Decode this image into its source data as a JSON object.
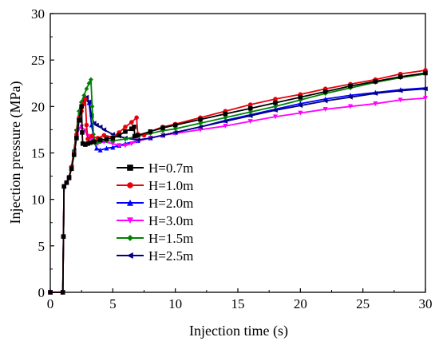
{
  "chart_data": {
    "type": "line",
    "xlabel": "Injection time (s)",
    "ylabel": "Injection pressure (MPa)",
    "xlim": [
      0,
      30
    ],
    "ylim": [
      0,
      30
    ],
    "xticks": [
      "0",
      "5",
      "10",
      "15",
      "20",
      "25",
      "30"
    ],
    "yticks": [
      "0",
      "5",
      "10",
      "15",
      "20",
      "25",
      "30"
    ],
    "grid": false,
    "legend_position": "center-left",
    "series": [
      {
        "name": "H=0.7m",
        "color": "#000000",
        "marker": "square",
        "points": [
          [
            0,
            0
          ],
          [
            1,
            0
          ],
          [
            1.05,
            6
          ],
          [
            1.1,
            11.4
          ],
          [
            1.3,
            11.8
          ],
          [
            1.5,
            12.3
          ],
          [
            1.7,
            13.3
          ],
          [
            1.9,
            14.8
          ],
          [
            2.1,
            16.6
          ],
          [
            2.3,
            18.5
          ],
          [
            2.5,
            20.0
          ],
          [
            2.55,
            17.2
          ],
          [
            2.6,
            16.0
          ],
          [
            2.8,
            15.9
          ],
          [
            3.0,
            16.0
          ],
          [
            3.2,
            16.1
          ],
          [
            3.5,
            16.2
          ],
          [
            4.0,
            16.4
          ],
          [
            4.5,
            16.5
          ],
          [
            5,
            16.6
          ],
          [
            5.5,
            16.9
          ],
          [
            6,
            17.3
          ],
          [
            6.5,
            17.6
          ],
          [
            6.7,
            17.8
          ],
          [
            6.75,
            16.8
          ],
          [
            7,
            16.9
          ],
          [
            8,
            17.3
          ],
          [
            9,
            17.7
          ],
          [
            10,
            18.0
          ],
          [
            12,
            18.6
          ],
          [
            14,
            19.2
          ],
          [
            16,
            19.8
          ],
          [
            18,
            20.4
          ],
          [
            20,
            21.0
          ],
          [
            22,
            21.6
          ],
          [
            24,
            22.2
          ],
          [
            26,
            22.7
          ],
          [
            28,
            23.2
          ],
          [
            30,
            23.6
          ]
        ]
      },
      {
        "name": "H=1.0m",
        "color": "#e8000b",
        "marker": "circle",
        "points": [
          [
            0,
            0
          ],
          [
            1,
            0
          ],
          [
            1.05,
            6
          ],
          [
            1.1,
            11.4
          ],
          [
            1.3,
            11.8
          ],
          [
            1.5,
            12.4
          ],
          [
            1.7,
            13.5
          ],
          [
            1.9,
            15.0
          ],
          [
            2.1,
            17.0
          ],
          [
            2.3,
            18.8
          ],
          [
            2.5,
            19.5
          ],
          [
            2.7,
            20.3
          ],
          [
            2.8,
            20.8
          ],
          [
            2.9,
            18.0
          ],
          [
            3.0,
            16.5
          ],
          [
            3.3,
            16.8
          ],
          [
            3.8,
            16.6
          ],
          [
            4.3,
            16.9
          ],
          [
            5,
            16.7
          ],
          [
            5.5,
            17.2
          ],
          [
            6,
            17.8
          ],
          [
            6.5,
            18.3
          ],
          [
            6.9,
            18.8
          ],
          [
            7.0,
            17.0
          ],
          [
            7.5,
            16.9
          ],
          [
            8,
            17.3
          ],
          [
            9,
            17.8
          ],
          [
            10,
            18.1
          ],
          [
            12,
            18.8
          ],
          [
            14,
            19.5
          ],
          [
            16,
            20.2
          ],
          [
            18,
            20.8
          ],
          [
            20,
            21.3
          ],
          [
            22,
            21.9
          ],
          [
            24,
            22.4
          ],
          [
            26,
            22.9
          ],
          [
            28,
            23.5
          ],
          [
            30,
            23.9
          ]
        ]
      },
      {
        "name": "H=2.0m",
        "color": "#0000ff",
        "marker": "triangle-up",
        "points": [
          [
            0,
            0
          ],
          [
            1,
            0
          ],
          [
            1.05,
            6
          ],
          [
            1.1,
            11.4
          ],
          [
            1.3,
            11.8
          ],
          [
            1.5,
            12.4
          ],
          [
            1.7,
            13.4
          ],
          [
            1.9,
            15.0
          ],
          [
            2.1,
            17.0
          ],
          [
            2.3,
            18.9
          ],
          [
            2.5,
            20.1
          ],
          [
            2.7,
            20.6
          ],
          [
            2.9,
            20.8
          ],
          [
            3.1,
            20.4
          ],
          [
            3.3,
            18.0
          ],
          [
            3.5,
            16.5
          ],
          [
            3.7,
            15.5
          ],
          [
            4.0,
            15.3
          ],
          [
            4.5,
            15.5
          ],
          [
            5,
            15.6
          ],
          [
            5.5,
            15.8
          ],
          [
            6,
            16.0
          ],
          [
            7,
            16.3
          ],
          [
            8,
            16.6
          ],
          [
            9,
            16.9
          ],
          [
            10,
            17.2
          ],
          [
            12,
            17.8
          ],
          [
            14,
            18.5
          ],
          [
            16,
            19.1
          ],
          [
            18,
            19.7
          ],
          [
            20,
            20.3
          ],
          [
            22,
            20.8
          ],
          [
            24,
            21.2
          ],
          [
            26,
            21.5
          ],
          [
            28,
            21.8
          ],
          [
            30,
            22.0
          ]
        ]
      },
      {
        "name": "H=3.0m",
        "color": "#ff00ff",
        "marker": "triangle-down",
        "points": [
          [
            0,
            0
          ],
          [
            1,
            0
          ],
          [
            1.05,
            6
          ],
          [
            1.1,
            11.4
          ],
          [
            1.3,
            11.8
          ],
          [
            1.5,
            12.4
          ],
          [
            1.7,
            13.4
          ],
          [
            1.9,
            15.0
          ],
          [
            2.1,
            16.7
          ],
          [
            2.3,
            17.6
          ],
          [
            2.5,
            17.8
          ],
          [
            2.8,
            17.4
          ],
          [
            3.0,
            16.8
          ],
          [
            3.3,
            16.4
          ],
          [
            3.8,
            16.0
          ],
          [
            4.3,
            16.2
          ],
          [
            5,
            16.0
          ],
          [
            5.5,
            15.8
          ],
          [
            6,
            15.8
          ],
          [
            6.5,
            16.0
          ],
          [
            7,
            16.3
          ],
          [
            8,
            16.6
          ],
          [
            9,
            16.9
          ],
          [
            10,
            17.1
          ],
          [
            12,
            17.5
          ],
          [
            14,
            17.9
          ],
          [
            16,
            18.4
          ],
          [
            18,
            18.9
          ],
          [
            20,
            19.3
          ],
          [
            22,
            19.7
          ],
          [
            24,
            20.0
          ],
          [
            26,
            20.3
          ],
          [
            28,
            20.7
          ],
          [
            30,
            20.9
          ]
        ]
      },
      {
        "name": "H=1.5m",
        "color": "#008000",
        "marker": "diamond",
        "points": [
          [
            0,
            0
          ],
          [
            1,
            0
          ],
          [
            1.05,
            6
          ],
          [
            1.1,
            11.4
          ],
          [
            1.3,
            11.8
          ],
          [
            1.5,
            12.4
          ],
          [
            1.7,
            13.5
          ],
          [
            1.9,
            15.2
          ],
          [
            2.1,
            17.4
          ],
          [
            2.3,
            19.5
          ],
          [
            2.5,
            20.5
          ],
          [
            2.7,
            21.2
          ],
          [
            2.9,
            21.9
          ],
          [
            3.1,
            22.5
          ],
          [
            3.25,
            22.9
          ],
          [
            3.35,
            20.0
          ],
          [
            3.45,
            17.0
          ],
          [
            3.6,
            16.0
          ],
          [
            4.0,
            16.2
          ],
          [
            4.5,
            16.3
          ],
          [
            5,
            16.3
          ],
          [
            6,
            16.5
          ],
          [
            7,
            16.8
          ],
          [
            8,
            17.1
          ],
          [
            9,
            17.4
          ],
          [
            10,
            17.6
          ],
          [
            12,
            18.2
          ],
          [
            14,
            18.8
          ],
          [
            16,
            19.4
          ],
          [
            18,
            20.0
          ],
          [
            20,
            20.7
          ],
          [
            22,
            21.4
          ],
          [
            24,
            22.0
          ],
          [
            26,
            22.6
          ],
          [
            28,
            23.1
          ],
          [
            30,
            23.5
          ]
        ]
      },
      {
        "name": "H=2.5m",
        "color": "#000080",
        "marker": "triangle-left",
        "points": [
          [
            0,
            0
          ],
          [
            1,
            0
          ],
          [
            1.05,
            6
          ],
          [
            1.1,
            11.4
          ],
          [
            1.3,
            11.8
          ],
          [
            1.5,
            12.4
          ],
          [
            1.7,
            13.5
          ],
          [
            1.9,
            15.3
          ],
          [
            2.1,
            17.5
          ],
          [
            2.3,
            19.5
          ],
          [
            2.5,
            20.4
          ],
          [
            2.7,
            20.8
          ],
          [
            2.9,
            21.0
          ],
          [
            3.1,
            20.5
          ],
          [
            3.3,
            19.0
          ],
          [
            3.5,
            18.2
          ],
          [
            3.7,
            18.0
          ],
          [
            4.0,
            17.8
          ],
          [
            4.3,
            17.5
          ],
          [
            5,
            17.0
          ],
          [
            5.5,
            16.8
          ],
          [
            6,
            16.6
          ],
          [
            7,
            16.4
          ],
          [
            8,
            16.6
          ],
          [
            9,
            16.9
          ],
          [
            10,
            17.2
          ],
          [
            12,
            17.8
          ],
          [
            14,
            18.4
          ],
          [
            16,
            19.0
          ],
          [
            18,
            19.6
          ],
          [
            20,
            20.1
          ],
          [
            22,
            20.6
          ],
          [
            24,
            21.0
          ],
          [
            26,
            21.4
          ],
          [
            28,
            21.7
          ],
          [
            30,
            21.9
          ]
        ]
      }
    ]
  }
}
